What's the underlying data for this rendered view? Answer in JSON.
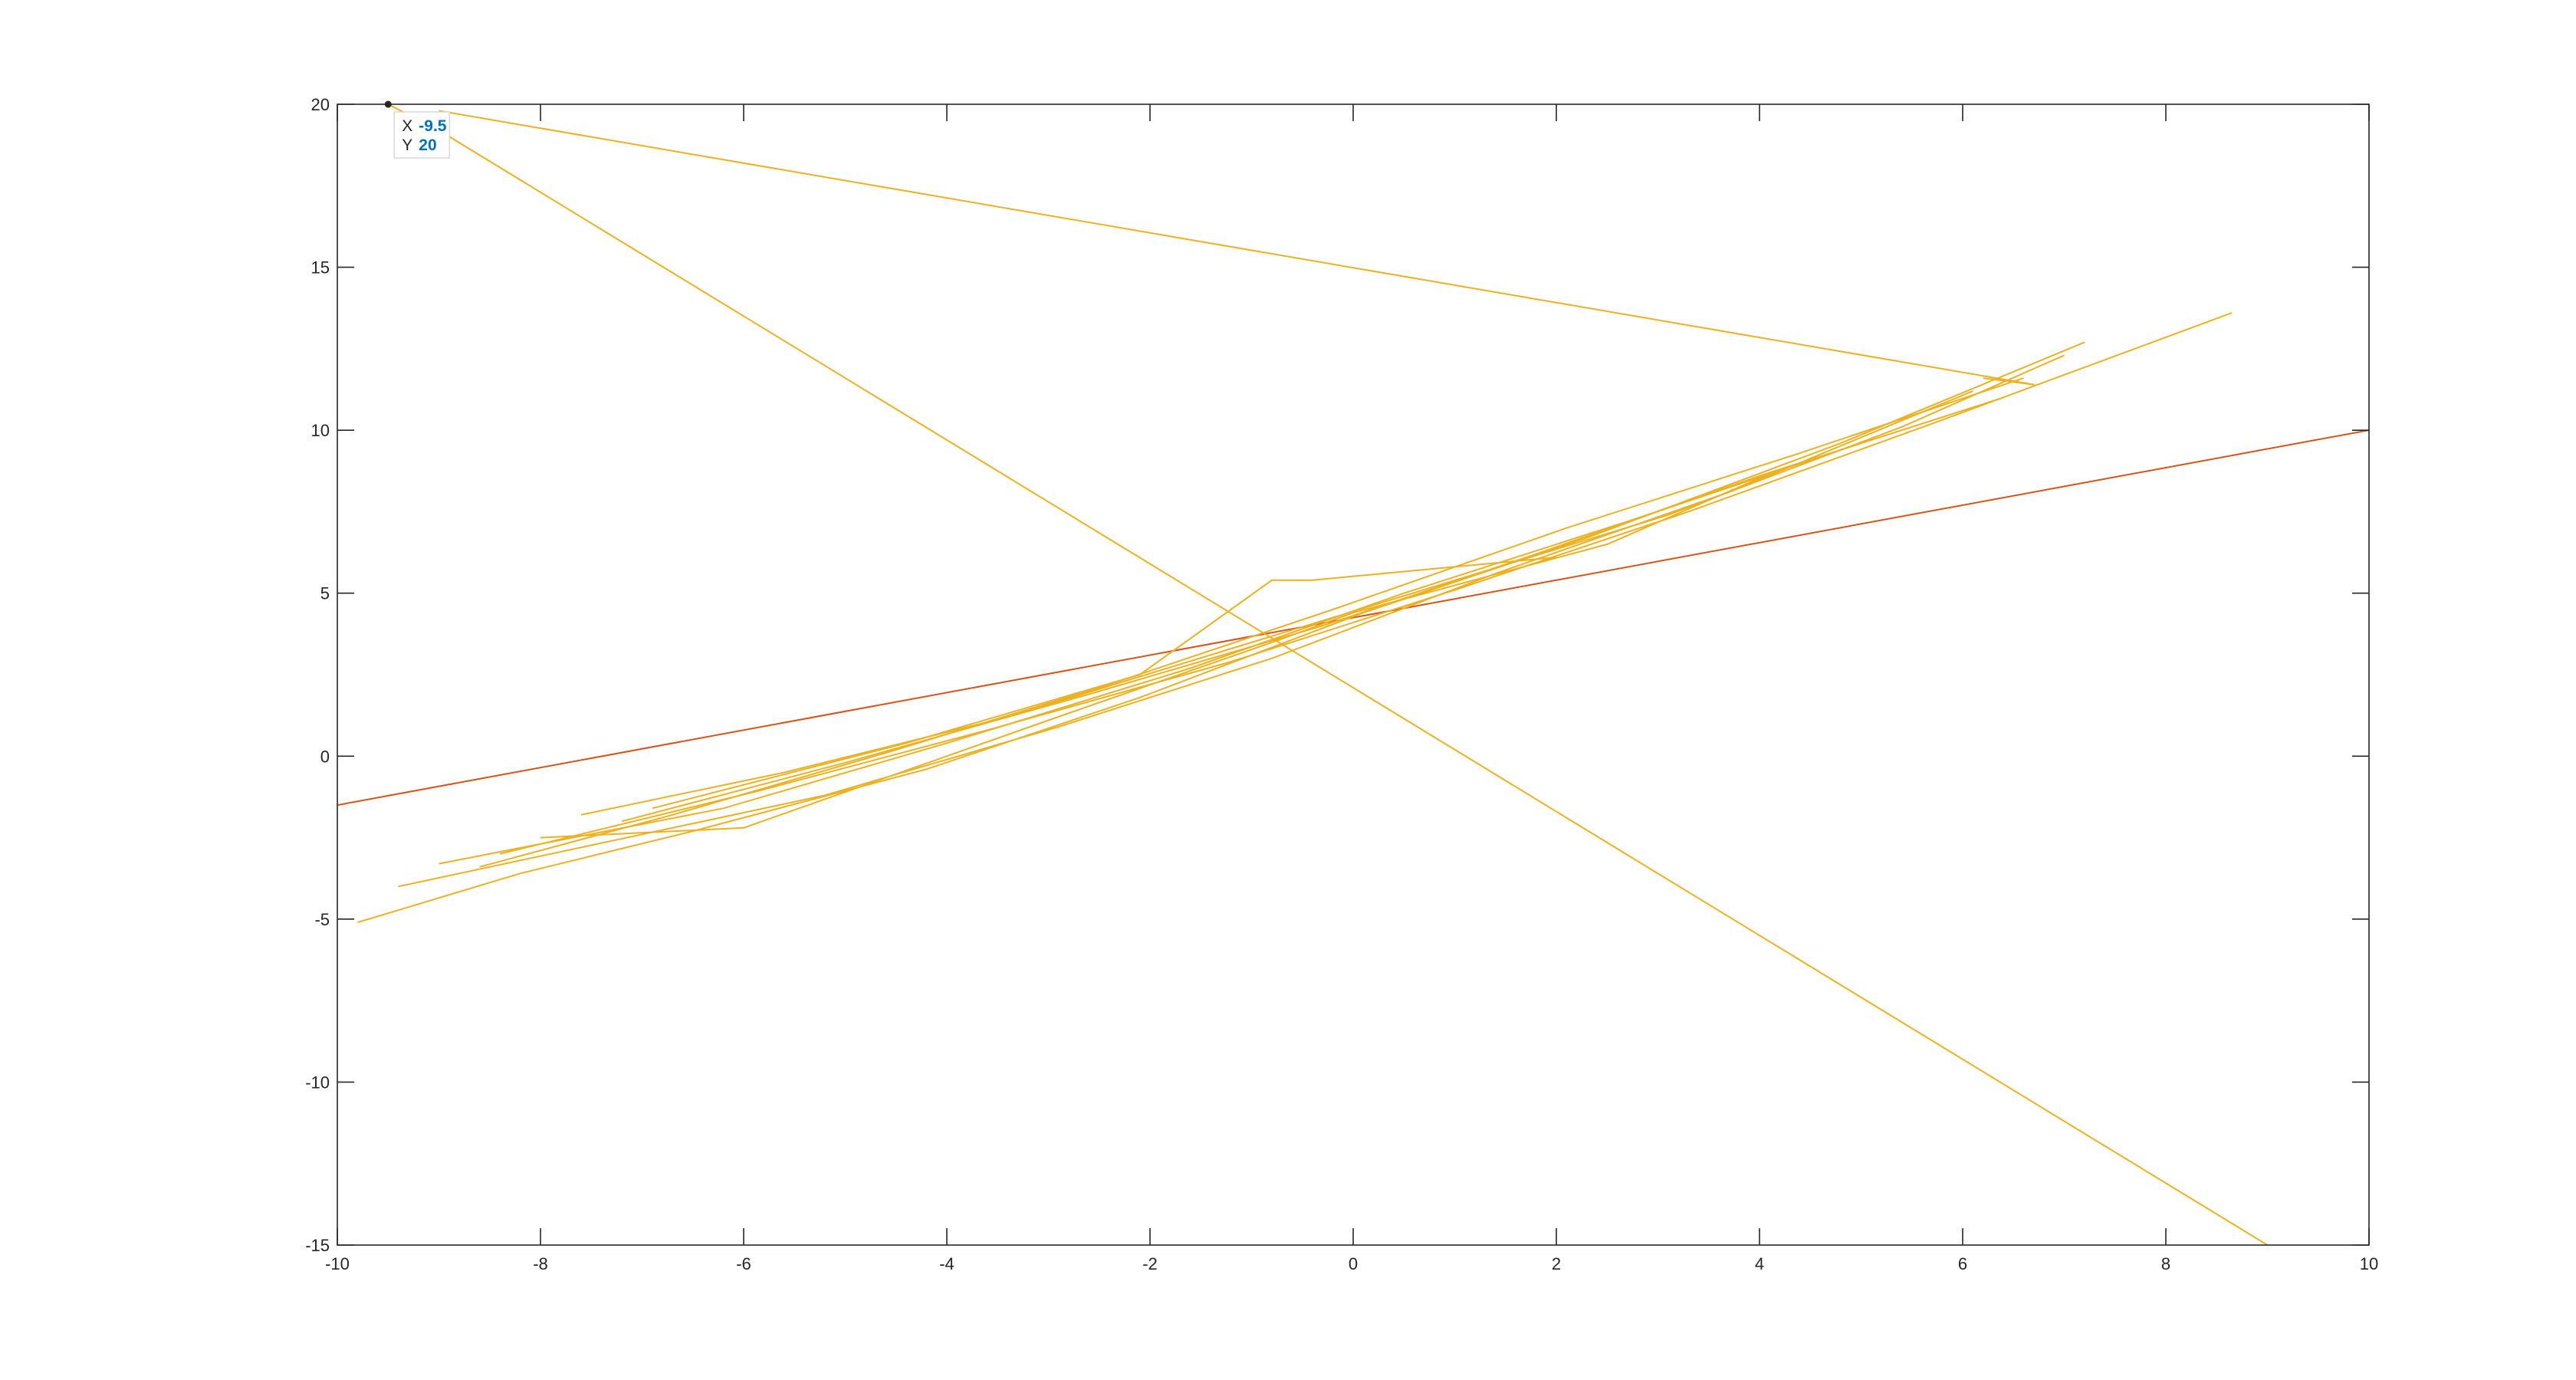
{
  "chart_data": {
    "type": "line",
    "title": "",
    "xlabel": "",
    "ylabel": "",
    "xlim": [
      -10,
      10
    ],
    "ylim": [
      -15,
      20
    ],
    "grid": false,
    "xticks": [
      -10,
      -8,
      -6,
      -4,
      -2,
      0,
      2,
      4,
      6,
      8,
      10
    ],
    "yticks": [
      -15,
      -10,
      -5,
      0,
      5,
      10,
      15,
      20
    ],
    "colors": {
      "orange_series": "#EDB120",
      "red_series": "#D95319",
      "axes": "#262626",
      "datatip_value": "#0072BD"
    },
    "series": [
      {
        "color": "#D95319",
        "x": [
          -10,
          10
        ],
        "y": [
          -1.5,
          10
        ]
      },
      {
        "color": "#EDB120",
        "x": [
          -9.5,
          -9.0,
          9.0
        ],
        "y": [
          20,
          19.2,
          -15
        ]
      },
      {
        "color": "#EDB120",
        "x": [
          -9.0,
          6.7,
          6.2
        ],
        "y": [
          19.8,
          11.4,
          11.6
        ]
      },
      {
        "color": "#EDB120",
        "x": [
          -9.8,
          -8.2,
          -6.5,
          -4.2,
          -2.1,
          0.1,
          2.3,
          4.8,
          7.2
        ],
        "y": [
          -5.1,
          -3.6,
          -2.3,
          -0.4,
          1.8,
          4.4,
          6.7,
          9.6,
          12.7
        ]
      },
      {
        "color": "#EDB120",
        "x": [
          -9.4,
          -7.3,
          -5.2,
          -2.9,
          -0.8,
          1.4,
          3.7,
          6.1
        ],
        "y": [
          -4.0,
          -2.6,
          -1.2,
          0.9,
          3.0,
          5.6,
          8.1,
          11.2
        ]
      },
      {
        "color": "#EDB120",
        "x": [
          -8.6,
          -6.7,
          -4.6,
          -2.4,
          -0.2,
          2.1,
          4.4,
          6.6
        ],
        "y": [
          -3.4,
          -1.8,
          0.1,
          2.2,
          4.5,
          7.0,
          9.3,
          11.6
        ]
      },
      {
        "color": "#EDB120",
        "x": [
          -7.6,
          -5.6,
          -3.4,
          -1.2,
          0.9,
          3.1,
          5.4,
          7.0
        ],
        "y": [
          -1.8,
          -0.5,
          1.2,
          3.3,
          5.3,
          7.4,
          10.1,
          12.3
        ]
      },
      {
        "color": "#EDB120",
        "x": [
          -9.0,
          -6.2,
          -4.0,
          -1.6,
          0.5,
          2.7,
          5.0
        ],
        "y": [
          -3.3,
          -1.6,
          0.4,
          2.7,
          5.0,
          7.2,
          9.6
        ]
      },
      {
        "color": "#EDB120",
        "x": [
          -8.0,
          -6.0,
          -3.0,
          -0.7,
          0.0,
          2.5,
          4.2
        ],
        "y": [
          -2.5,
          -2.2,
          1.1,
          3.6,
          4.4,
          6.5,
          8.8
        ]
      },
      {
        "color": "#EDB120",
        "x": [
          -6.9,
          -4.4,
          -2.1,
          -0.8,
          -0.4,
          2.0
        ],
        "y": [
          -1.6,
          0.4,
          2.5,
          5.4,
          5.4,
          6.1
        ]
      },
      {
        "color": "#EDB120",
        "x": [
          -8.4,
          -5.9,
          -3.6,
          -1.2,
          1.0,
          3.3,
          5.7,
          8.65
        ],
        "y": [
          -3.0,
          -1.1,
          0.8,
          2.9,
          5.1,
          7.5,
          10.2,
          13.6
        ]
      },
      {
        "color": "#EDB120",
        "x": [
          -7.2,
          -5.0,
          -2.6,
          -0.3,
          1.8,
          4.0,
          6.4
        ],
        "y": [
          -2.0,
          -0.2,
          1.9,
          4.0,
          6.2,
          8.6,
          11.0
        ]
      }
    ],
    "datatip": {
      "x_label": "X",
      "x_value": "-9.5",
      "y_label": "Y",
      "y_value": "20",
      "x": -9.5,
      "y": 20
    }
  }
}
